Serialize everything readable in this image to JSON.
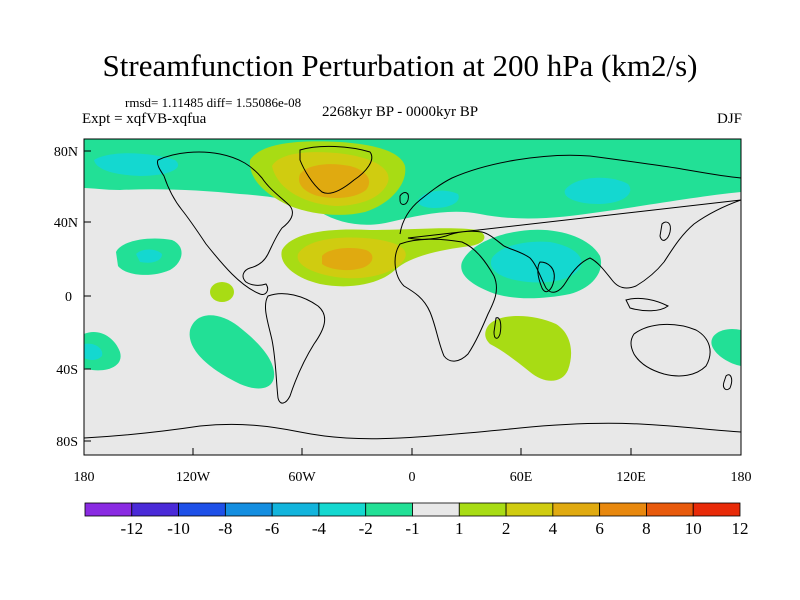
{
  "title": "Streamfunction Perturbation at 200 hPa (km2/s)",
  "stats": "rmsd= 1.11485 diff= 1.55086e-08",
  "experiment": "Expt = xqfVB-xqfua",
  "period": "2268kyr BP - 0000kyr BP",
  "season": "DJF",
  "axes": {
    "lat_ticks": [
      "80N",
      "40N",
      "0",
      "40S",
      "80S"
    ],
    "lon_ticks": [
      "180",
      "120W",
      "60W",
      "0",
      "60E",
      "120E",
      "180"
    ]
  },
  "colorbar": {
    "labels": [
      "-12",
      "-10",
      "-8",
      "-6",
      "-4",
      "-2",
      "-1",
      "1",
      "2",
      "4",
      "6",
      "8",
      "10",
      "12"
    ],
    "colors": [
      "#8a2be2",
      "#4a2ad8",
      "#1e50e8",
      "#148ee0",
      "#12b4dc",
      "#14d8d0",
      "#22e096",
      "#e8e8e8",
      "#a8dc14",
      "#d0cc10",
      "#e0aa10",
      "#e8880e",
      "#e85a0c",
      "#e82a08"
    ]
  },
  "colors": {
    "background": "#ffffff",
    "map_fill": "#e8e8e8",
    "coast": "#000000",
    "neg1": "#22e096",
    "neg2": "#14d8d0",
    "pos1": "#a8dc14",
    "pos2": "#d0cc10",
    "pos3": "#e0aa10"
  }
}
